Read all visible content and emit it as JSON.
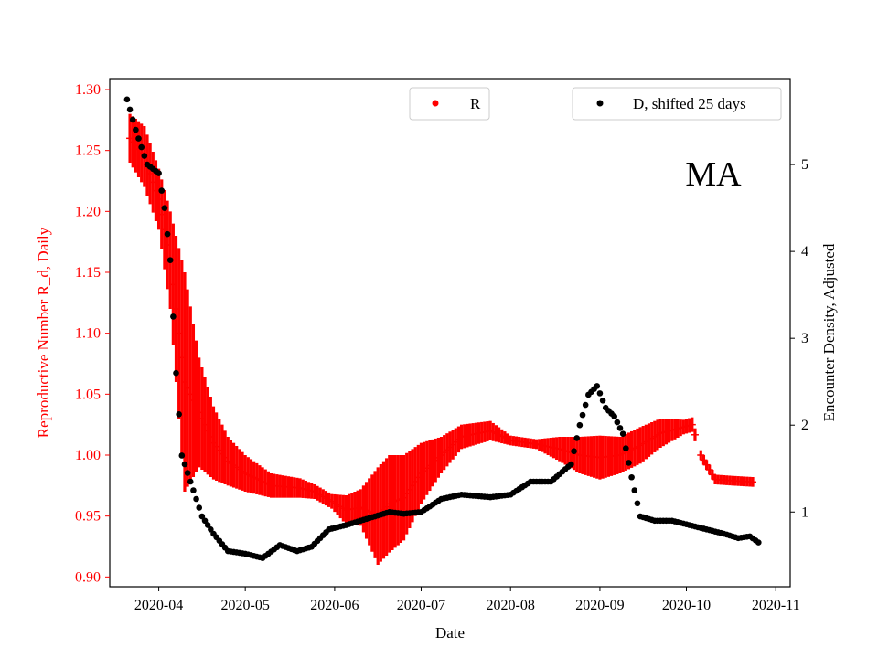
{
  "chart_data": {
    "type": "scatter",
    "annotation": "MA",
    "xlabel": "Date",
    "ylabel_left": "Reproductive Number R_d, Daily",
    "ylabel_right": "Encounter Density, Adjusted",
    "x_ticks": [
      "2020-04",
      "2020-05",
      "2020-06",
      "2020-07",
      "2020-08",
      "2020-09",
      "2020-10",
      "2020-11"
    ],
    "y_left_ticks": [
      "0.90",
      "0.95",
      "1.00",
      "1.05",
      "1.10",
      "1.15",
      "1.20",
      "1.25",
      "1.30"
    ],
    "y_right_ticks": [
      "1",
      "2",
      "3",
      "4",
      "5"
    ],
    "x_range": [
      "2020-03-15",
      "2020-11-06"
    ],
    "y_left_range": [
      0.892,
      1.309
    ],
    "y_right_range": [
      0.14,
      5.99
    ],
    "colors": {
      "R": "#ff0000",
      "D": "#000000",
      "left_axis": "#ff0000",
      "right_axis": "#000000"
    },
    "legend": [
      {
        "name": "R",
        "color": "#ff0000",
        "placement": "top-center"
      },
      {
        "name": "D, shifted 25 days",
        "color": "#000000",
        "placement": "top-right"
      }
    ],
    "series": [
      {
        "name": "R",
        "axis": "left",
        "style": "points-with-error-bars",
        "x": [
          "2020-03-22",
          "2020-03-27",
          "2020-04-01",
          "2020-04-05",
          "2020-04-10",
          "2020-04-15",
          "2020-04-20",
          "2020-04-25",
          "2020-05-01",
          "2020-05-10",
          "2020-05-20",
          "2020-05-25",
          "2020-05-31",
          "2020-06-05",
          "2020-06-10",
          "2020-06-16",
          "2020-06-20",
          "2020-06-25",
          "2020-07-01",
          "2020-07-08",
          "2020-07-15",
          "2020-07-25",
          "2020-08-01",
          "2020-08-10",
          "2020-08-18",
          "2020-08-25",
          "2020-09-01",
          "2020-09-08",
          "2020-09-15",
          "2020-09-22",
          "2020-09-30",
          "2020-10-03",
          "2020-10-06",
          "2020-10-11",
          "2020-10-17",
          "2020-10-24"
        ],
        "y": [
          1.26,
          1.245,
          1.21,
          1.16,
          1.06,
          1.035,
          1.01,
          0.995,
          0.985,
          0.975,
          0.973,
          0.97,
          0.962,
          0.955,
          0.957,
          0.95,
          0.96,
          0.965,
          0.985,
          1.0,
          1.015,
          1.02,
          1.012,
          1.009,
          1.005,
          1.0,
          0.998,
          1.0,
          1.008,
          1.018,
          1.023,
          1.025,
          1.0,
          0.98,
          0.979,
          0.978
        ],
        "err": [
          0.02,
          0.025,
          0.025,
          0.04,
          0.09,
          0.045,
          0.03,
          0.02,
          0.015,
          0.01,
          0.008,
          0.006,
          0.006,
          0.012,
          0.015,
          0.04,
          0.04,
          0.035,
          0.025,
          0.015,
          0.01,
          0.008,
          0.004,
          0.004,
          0.01,
          0.015,
          0.018,
          0.015,
          0.015,
          0.012,
          0.006,
          0.006,
          0.004,
          0.004,
          0.004,
          0.004
        ]
      },
      {
        "name": "D, shifted 25 days",
        "axis": "right",
        "style": "points",
        "x": [
          "2020-03-21",
          "2020-03-24",
          "2020-03-28",
          "2020-04-01",
          "2020-04-03",
          "2020-04-05",
          "2020-04-07",
          "2020-04-09",
          "2020-04-12",
          "2020-04-16",
          "2020-04-20",
          "2020-04-25",
          "2020-05-01",
          "2020-05-07",
          "2020-05-13",
          "2020-05-19",
          "2020-05-24",
          "2020-05-30",
          "2020-06-05",
          "2020-06-12",
          "2020-06-20",
          "2020-06-25",
          "2020-07-01",
          "2020-07-08",
          "2020-07-15",
          "2020-07-25",
          "2020-08-01",
          "2020-08-08",
          "2020-08-15",
          "2020-08-22",
          "2020-08-25",
          "2020-08-28",
          "2020-08-31",
          "2020-09-03",
          "2020-09-06",
          "2020-09-09",
          "2020-09-12",
          "2020-09-15",
          "2020-09-20",
          "2020-09-26",
          "2020-10-02",
          "2020-10-08",
          "2020-10-14",
          "2020-10-19",
          "2020-10-23",
          "2020-10-26"
        ],
        "y": [
          5.75,
          5.4,
          5.0,
          4.9,
          4.5,
          3.9,
          2.6,
          1.65,
          1.35,
          0.95,
          0.75,
          0.55,
          0.52,
          0.47,
          0.62,
          0.55,
          0.6,
          0.8,
          0.85,
          0.92,
          1.0,
          0.98,
          1.0,
          1.15,
          1.2,
          1.17,
          1.2,
          1.35,
          1.35,
          1.55,
          2.0,
          2.35,
          2.45,
          2.2,
          2.1,
          1.9,
          1.4,
          0.95,
          0.9,
          0.9,
          0.85,
          0.8,
          0.75,
          0.7,
          0.72,
          0.65
        ]
      }
    ]
  }
}
